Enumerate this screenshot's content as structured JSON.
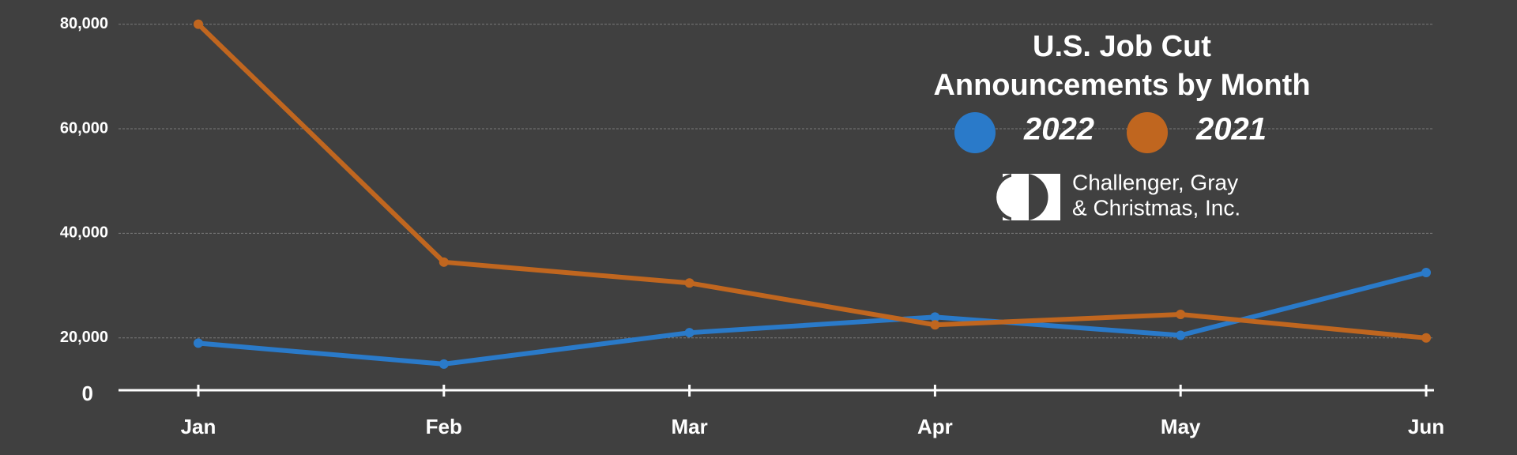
{
  "chart_data": {
    "type": "line",
    "title": [
      "U.S. Job Cut",
      "Announcements by Month"
    ],
    "categories": [
      "Jan",
      "Feb",
      "Mar",
      "Apr",
      "May",
      "Jun"
    ],
    "series": [
      {
        "name": "2022",
        "color": "#2a7ac9",
        "values": [
          19000,
          15000,
          21000,
          24000,
          20500,
          32500
        ]
      },
      {
        "name": "2021",
        "color": "#c0661f",
        "values": [
          80000,
          34500,
          30500,
          22500,
          24500,
          20000
        ]
      }
    ],
    "ylim": [
      10000,
      81000
    ],
    "yticks": [
      {
        "value": 20000,
        "label": "20,000"
      },
      {
        "value": 40000,
        "label": "40,000"
      },
      {
        "value": 60000,
        "label": "60,000"
      },
      {
        "value": 80000,
        "label": "80,000"
      }
    ],
    "baseline_label": "0",
    "grid": true,
    "logo_text": [
      "Challenger, Gray",
      "& Christmas, Inc."
    ]
  }
}
